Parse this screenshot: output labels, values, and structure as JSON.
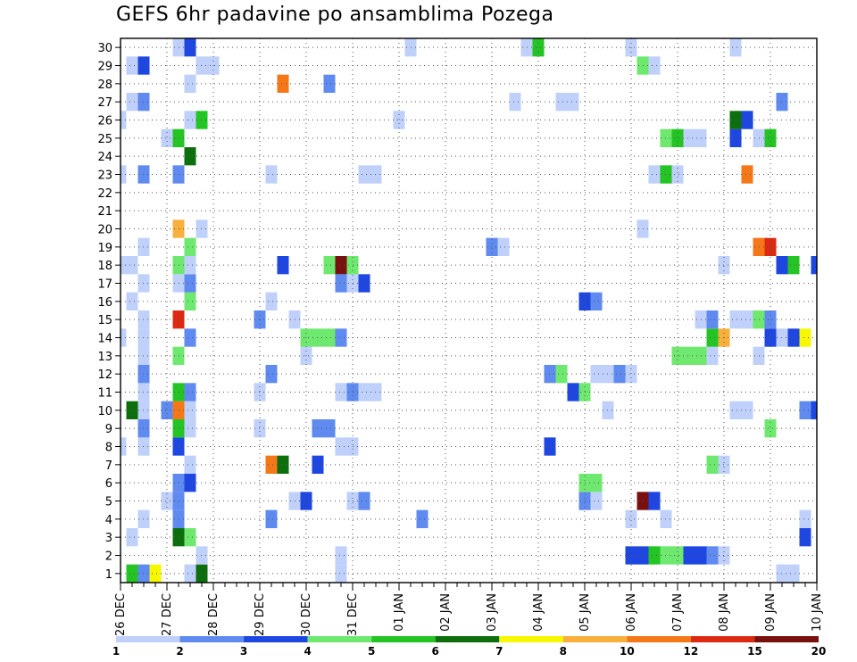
{
  "chart_data": {
    "type": "heatmap",
    "title": "GEFS 6hr padavine po ansamblima Pozega",
    "x_tick_labels": [
      "26 DEC",
      "27 DEC",
      "28 DEC",
      "29 DEC",
      "30 DEC",
      "31 DEC",
      "01 JAN",
      "02 JAN",
      "03 JAN",
      "04 JAN",
      "05 JAN",
      "06 JAN",
      "07 JAN",
      "08 JAN",
      "09 JAN",
      "10 JAN"
    ],
    "y_tick_labels": [
      "1",
      "2",
      "3",
      "4",
      "5",
      "6",
      "7",
      "8",
      "9",
      "10",
      "11",
      "12",
      "13",
      "14",
      "15",
      "16",
      "17",
      "18",
      "19",
      "20",
      "21",
      "22",
      "23",
      "24",
      "25",
      "26",
      "27",
      "28",
      "29",
      "30"
    ],
    "xlim": [
      0,
      60
    ],
    "ylim": [
      0.5,
      30.5
    ],
    "grid": true,
    "x_unit": "6-hour step from 26 DEC 00Z",
    "colorbar": {
      "labels": [
        "1",
        "2",
        "3",
        "4",
        "5",
        "6",
        "7",
        "8",
        "10",
        "12",
        "15",
        "20"
      ],
      "colors": [
        "#bfd0fa",
        "#5f8af0",
        "#1e46e0",
        "#6ee86e",
        "#24c424",
        "#0c6e0c",
        "#f7f700",
        "#f7b03c",
        "#f57818",
        "#dc2a12",
        "#781010"
      ]
    },
    "cells": [
      [
        1,
        1,
        5
      ],
      [
        2,
        1,
        2
      ],
      [
        3,
        1,
        7
      ],
      [
        6,
        1,
        1
      ],
      [
        7,
        1,
        6
      ],
      [
        19,
        1,
        1
      ],
      [
        57,
        1,
        1
      ],
      [
        58,
        1,
        1
      ],
      [
        44,
        2,
        3
      ],
      [
        45,
        2,
        3
      ],
      [
        46,
        2,
        5
      ],
      [
        47,
        2,
        4
      ],
      [
        48,
        2,
        4
      ],
      [
        49,
        2,
        3
      ],
      [
        50,
        2,
        3
      ],
      [
        51,
        2,
        2
      ],
      [
        52,
        2,
        1
      ],
      [
        7,
        2,
        1
      ],
      [
        19,
        2,
        1
      ],
      [
        1,
        3,
        1
      ],
      [
        5,
        3,
        6
      ],
      [
        6,
        3,
        4
      ],
      [
        59,
        3,
        3
      ],
      [
        2,
        4,
        1
      ],
      [
        5,
        4,
        2
      ],
      [
        13,
        4,
        2
      ],
      [
        26,
        4,
        2
      ],
      [
        44,
        4,
        1
      ],
      [
        47,
        4,
        1
      ],
      [
        59,
        4,
        1
      ],
      [
        4,
        5,
        1
      ],
      [
        5,
        5,
        2
      ],
      [
        15,
        5,
        1
      ],
      [
        16,
        5,
        3
      ],
      [
        20,
        5,
        1
      ],
      [
        21,
        5,
        2
      ],
      [
        40,
        5,
        2
      ],
      [
        41,
        5,
        1
      ],
      [
        45,
        5,
        11
      ],
      [
        46,
        5,
        3
      ],
      [
        5,
        6,
        2
      ],
      [
        6,
        6,
        3
      ],
      [
        40,
        6,
        4
      ],
      [
        41,
        6,
        4
      ],
      [
        6,
        7,
        1
      ],
      [
        13,
        7,
        9
      ],
      [
        14,
        7,
        6
      ],
      [
        17,
        7,
        3
      ],
      [
        51,
        7,
        4
      ],
      [
        52,
        7,
        1
      ],
      [
        0,
        8,
        1
      ],
      [
        2,
        8,
        1
      ],
      [
        5,
        8,
        3
      ],
      [
        19,
        8,
        1
      ],
      [
        20,
        8,
        1
      ],
      [
        37,
        8,
        3
      ],
      [
        2,
        9,
        2
      ],
      [
        5,
        9,
        5
      ],
      [
        6,
        9,
        1
      ],
      [
        12,
        9,
        1
      ],
      [
        17,
        9,
        2
      ],
      [
        18,
        9,
        2
      ],
      [
        56,
        9,
        4
      ],
      [
        1,
        10,
        6
      ],
      [
        2,
        10,
        1
      ],
      [
        4,
        10,
        2
      ],
      [
        5,
        10,
        9
      ],
      [
        6,
        10,
        1
      ],
      [
        42,
        10,
        1
      ],
      [
        53,
        10,
        1
      ],
      [
        54,
        10,
        1
      ],
      [
        59,
        10,
        2
      ],
      [
        60,
        10,
        3
      ],
      [
        2,
        11,
        1
      ],
      [
        5,
        11,
        5
      ],
      [
        6,
        11,
        2
      ],
      [
        12,
        11,
        1
      ],
      [
        19,
        11,
        1
      ],
      [
        20,
        11,
        2
      ],
      [
        21,
        11,
        1
      ],
      [
        22,
        11,
        1
      ],
      [
        39,
        11,
        3
      ],
      [
        40,
        11,
        4
      ],
      [
        2,
        12,
        2
      ],
      [
        13,
        12,
        2
      ],
      [
        37,
        12,
        2
      ],
      [
        38,
        12,
        4
      ],
      [
        41,
        12,
        1
      ],
      [
        42,
        12,
        1
      ],
      [
        43,
        12,
        2
      ],
      [
        44,
        12,
        1
      ],
      [
        2,
        13,
        1
      ],
      [
        5,
        13,
        4
      ],
      [
        16,
        13,
        1
      ],
      [
        48,
        13,
        4
      ],
      [
        49,
        13,
        4
      ],
      [
        50,
        13,
        4
      ],
      [
        51,
        13,
        1
      ],
      [
        55,
        13,
        1
      ],
      [
        0,
        14,
        1
      ],
      [
        2,
        14,
        1
      ],
      [
        6,
        14,
        2
      ],
      [
        16,
        14,
        4
      ],
      [
        17,
        14,
        4
      ],
      [
        18,
        14,
        4
      ],
      [
        19,
        14,
        2
      ],
      [
        51,
        14,
        5
      ],
      [
        52,
        14,
        8
      ],
      [
        56,
        14,
        3
      ],
      [
        57,
        14,
        1
      ],
      [
        58,
        14,
        3
      ],
      [
        59,
        14,
        7
      ],
      [
        2,
        15,
        1
      ],
      [
        5,
        15,
        10
      ],
      [
        12,
        15,
        2
      ],
      [
        15,
        15,
        1
      ],
      [
        50,
        15,
        1
      ],
      [
        51,
        15,
        2
      ],
      [
        53,
        15,
        1
      ],
      [
        54,
        15,
        1
      ],
      [
        55,
        15,
        4
      ],
      [
        56,
        15,
        2
      ],
      [
        1,
        16,
        1
      ],
      [
        6,
        16,
        4
      ],
      [
        13,
        16,
        1
      ],
      [
        40,
        16,
        3
      ],
      [
        41,
        16,
        2
      ],
      [
        2,
        17,
        1
      ],
      [
        5,
        17,
        1
      ],
      [
        6,
        17,
        2
      ],
      [
        19,
        17,
        2
      ],
      [
        20,
        17,
        1
      ],
      [
        21,
        17,
        3
      ],
      [
        0,
        18,
        1
      ],
      [
        1,
        18,
        1
      ],
      [
        5,
        18,
        4
      ],
      [
        6,
        18,
        1
      ],
      [
        14,
        18,
        3
      ],
      [
        18,
        18,
        4
      ],
      [
        19,
        18,
        11
      ],
      [
        20,
        18,
        4
      ],
      [
        52,
        18,
        1
      ],
      [
        57,
        18,
        3
      ],
      [
        58,
        18,
        5
      ],
      [
        60,
        18,
        3
      ],
      [
        2,
        19,
        1
      ],
      [
        6,
        19,
        4
      ],
      [
        32,
        19,
        2
      ],
      [
        33,
        19,
        1
      ],
      [
        55,
        19,
        9
      ],
      [
        56,
        19,
        10
      ],
      [
        5,
        20,
        8
      ],
      [
        7,
        20,
        1
      ],
      [
        45,
        20,
        1
      ],
      [
        0,
        23,
        1
      ],
      [
        2,
        23,
        2
      ],
      [
        5,
        23,
        2
      ],
      [
        13,
        23,
        1
      ],
      [
        21,
        23,
        1
      ],
      [
        22,
        23,
        1
      ],
      [
        46,
        23,
        1
      ],
      [
        47,
        23,
        5
      ],
      [
        48,
        23,
        1
      ],
      [
        54,
        23,
        9
      ],
      [
        6,
        24,
        6
      ],
      [
        4,
        25,
        1
      ],
      [
        5,
        25,
        5
      ],
      [
        47,
        25,
        4
      ],
      [
        48,
        25,
        5
      ],
      [
        49,
        25,
        1
      ],
      [
        50,
        25,
        1
      ],
      [
        53,
        25,
        3
      ],
      [
        55,
        25,
        1
      ],
      [
        56,
        25,
        5
      ],
      [
        0,
        26,
        1
      ],
      [
        6,
        26,
        1
      ],
      [
        7,
        26,
        5
      ],
      [
        24,
        26,
        1
      ],
      [
        53,
        26,
        6
      ],
      [
        54,
        26,
        3
      ],
      [
        1,
        27,
        1
      ],
      [
        2,
        27,
        2
      ],
      [
        34,
        27,
        1
      ],
      [
        38,
        27,
        1
      ],
      [
        39,
        27,
        1
      ],
      [
        57,
        27,
        2
      ],
      [
        6,
        28,
        1
      ],
      [
        14,
        28,
        9
      ],
      [
        18,
        28,
        2
      ],
      [
        1,
        29,
        1
      ],
      [
        2,
        29,
        3
      ],
      [
        7,
        29,
        1
      ],
      [
        8,
        29,
        1
      ],
      [
        45,
        29,
        4
      ],
      [
        46,
        29,
        1
      ],
      [
        5,
        30,
        1
      ],
      [
        6,
        30,
        3
      ],
      [
        25,
        30,
        1
      ],
      [
        35,
        30,
        1
      ],
      [
        36,
        30,
        5
      ],
      [
        44,
        30,
        1
      ],
      [
        53,
        30,
        1
      ]
    ]
  }
}
